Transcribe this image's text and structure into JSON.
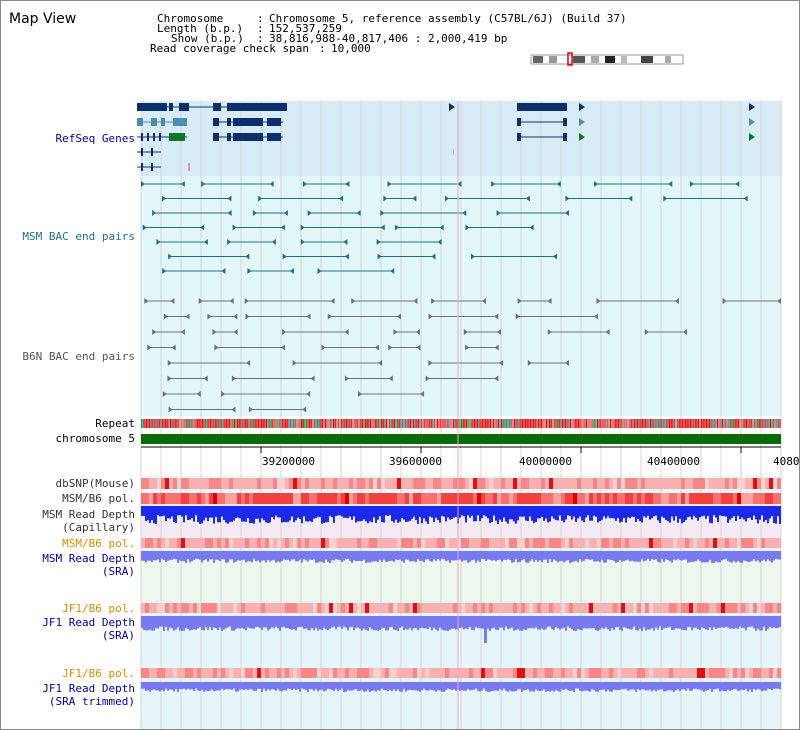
{
  "title": "Map View",
  "info": {
    "chromosome_key": "Chromosome",
    "chromosome_val": "Chromosome 5, reference assembly (C57BL/6J) (Build 37)",
    "length_key": "Length (b.p.)",
    "length_val": "152,537,259",
    "show_key": "Show (b.p.)",
    "show_val": "38,816,988-40,817,406 : 2,000,419 bp",
    "coverage_key": "Read coverage check span",
    "coverage_val": "10,000"
  },
  "tracks": {
    "refseq": "RefSeq Genes",
    "msm_bac": "MSM BAC end pairs",
    "b6n_bac": "B6N BAC end pairs",
    "repeat": "Repeat",
    "chromosome": "chromosome 5",
    "dbsnp": "dbSNP(Mouse)",
    "msm_pol": "MSM/B6 pol.",
    "msm_depth_cap_1": "MSM Read Depth",
    "msm_depth_cap_2": "(Capillary)",
    "msm_pol2": "MSM/B6 pol.",
    "msm_depth_sra_1": "MSM Read Depth",
    "msm_depth_sra_2": "(SRA)",
    "jf1_pol": "JF1/B6 pol.",
    "jf1_depth_sra_1": "JF1 Read Depth",
    "jf1_depth_sra_2": "(SRA)",
    "jf1_pol2": "JF1/B6 pol.",
    "jf1_depth_trim_1": "JF1 Read Depth",
    "jf1_depth_trim_2": "(SRA trimmed)"
  },
  "axis": {
    "ticks": [
      "39200000",
      "39600000",
      "40000000",
      "40400000",
      "4080"
    ]
  },
  "colors": {
    "refseq_bg": "#d8ecf8",
    "bac_bg": "#e2f8f8",
    "gene_navy": "#0a2f6a",
    "gene_teal": "#4a8fb0",
    "gene_green": "#0a7a2a",
    "msm_teal": "#1f6f86",
    "b6n_gray": "#707070",
    "chromosome_green": "#0a6a0a",
    "label_blue": "#0000a0",
    "label_orange": "#e08a00",
    "label_gray": "#333333",
    "depth_blue": "#1a2ae8",
    "depth_lav": "#7a7af0"
  }
}
